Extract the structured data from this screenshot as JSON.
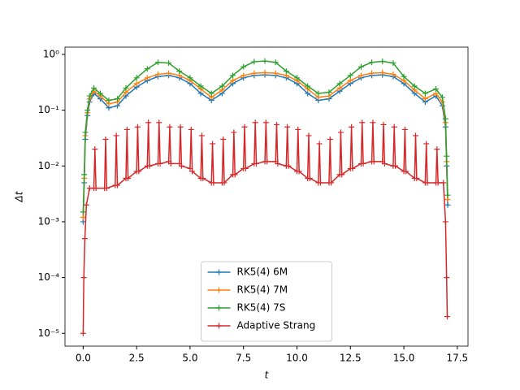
{
  "chart_data": {
    "type": "line",
    "xlabel": "t",
    "ylabel": "Δt",
    "xlim": [
      -0.85,
      18.0
    ],
    "ylim": [
      5.9e-06,
      1.35
    ],
    "log_y": true,
    "legend": "lower center",
    "xticks": [
      {
        "value": 0,
        "label": "0.0"
      },
      2.5,
      {
        "value": 5,
        "label": "5.0"
      },
      7.5,
      {
        "value": 10,
        "label": "10.0"
      },
      12.5,
      {
        "value": 15,
        "label": "15.0"
      },
      17.5
    ],
    "yticks": [
      {
        "value": 1e-05,
        "label": "10⁻⁵"
      },
      {
        "value": 0.0001,
        "label": "10⁻⁴"
      },
      {
        "value": 0.001,
        "label": "10⁻³"
      },
      {
        "value": 0.01,
        "label": "10⁻²"
      },
      {
        "value": 0.1,
        "label": "10⁻¹"
      },
      {
        "value": 1,
        "label": "10⁰"
      }
    ],
    "series": [
      {
        "name": "RK5(4) 6M",
        "color": "#1f77b4",
        "x": [
          0,
          0.05,
          0.1,
          0.2,
          0.3,
          0.5,
          0.8,
          1.2,
          1.6,
          2.0,
          2.5,
          3.0,
          3.5,
          4.0,
          4.5,
          5.0,
          5.5,
          6.0,
          6.5,
          7.0,
          7.5,
          8.0,
          8.5,
          9.0,
          9.5,
          10.0,
          10.5,
          11.0,
          11.5,
          12.0,
          12.5,
          13.0,
          13.5,
          14.0,
          14.5,
          15.0,
          15.5,
          16.0,
          16.5,
          16.8,
          16.95,
          17.0,
          17.05
        ],
        "values": [
          0.001,
          0.005,
          0.03,
          0.08,
          0.14,
          0.2,
          0.16,
          0.11,
          0.12,
          0.18,
          0.26,
          0.34,
          0.4,
          0.42,
          0.38,
          0.3,
          0.2,
          0.15,
          0.2,
          0.3,
          0.38,
          0.42,
          0.43,
          0.42,
          0.38,
          0.3,
          0.2,
          0.15,
          0.16,
          0.22,
          0.3,
          0.38,
          0.42,
          0.43,
          0.4,
          0.3,
          0.2,
          0.14,
          0.18,
          0.12,
          0.05,
          0.01,
          0.002
        ]
      },
      {
        "name": "RK5(4) 7M",
        "color": "#ff7f0e",
        "x": [
          0,
          0.05,
          0.1,
          0.2,
          0.3,
          0.5,
          0.8,
          1.2,
          1.6,
          2.0,
          2.5,
          3.0,
          3.5,
          4.0,
          4.5,
          5.0,
          5.5,
          6.0,
          6.5,
          7.0,
          7.5,
          8.0,
          8.5,
          9.0,
          9.5,
          10.0,
          10.5,
          11.0,
          11.5,
          12.0,
          12.5,
          13.0,
          13.5,
          14.0,
          14.5,
          15.0,
          15.5,
          16.0,
          16.5,
          16.8,
          16.95,
          17.0,
          17.05
        ],
        "values": [
          0.0012,
          0.006,
          0.035,
          0.09,
          0.16,
          0.22,
          0.18,
          0.13,
          0.14,
          0.21,
          0.3,
          0.38,
          0.44,
          0.46,
          0.42,
          0.34,
          0.24,
          0.17,
          0.23,
          0.34,
          0.42,
          0.46,
          0.47,
          0.46,
          0.42,
          0.34,
          0.24,
          0.17,
          0.18,
          0.25,
          0.34,
          0.42,
          0.46,
          0.47,
          0.44,
          0.34,
          0.23,
          0.16,
          0.2,
          0.14,
          0.06,
          0.012,
          0.0025
        ]
      },
      {
        "name": "RK5(4) 7S",
        "color": "#2ca02c",
        "x": [
          0,
          0.05,
          0.1,
          0.2,
          0.3,
          0.5,
          0.8,
          1.2,
          1.6,
          2.0,
          2.5,
          3.0,
          3.5,
          4.0,
          4.5,
          5.0,
          5.5,
          6.0,
          6.5,
          7.0,
          7.5,
          8.0,
          8.5,
          9.0,
          9.5,
          10.0,
          10.5,
          11.0,
          11.5,
          12.0,
          12.5,
          13.0,
          13.5,
          14.0,
          14.5,
          15.0,
          15.5,
          16.0,
          16.5,
          16.8,
          16.95,
          17.0,
          17.05
        ],
        "values": [
          0.0015,
          0.007,
          0.04,
          0.1,
          0.18,
          0.25,
          0.2,
          0.15,
          0.16,
          0.25,
          0.38,
          0.55,
          0.72,
          0.7,
          0.5,
          0.38,
          0.27,
          0.2,
          0.27,
          0.42,
          0.6,
          0.74,
          0.76,
          0.72,
          0.5,
          0.38,
          0.27,
          0.2,
          0.21,
          0.3,
          0.42,
          0.6,
          0.72,
          0.75,
          0.7,
          0.4,
          0.27,
          0.2,
          0.24,
          0.17,
          0.07,
          0.015,
          0.003
        ]
      },
      {
        "name": "Adaptive Strang",
        "color": "#d62728",
        "x": [
          0,
          0.03,
          0.08,
          0.15,
          0.3,
          0.5,
          0.55,
          0.6,
          1.0,
          1.05,
          1.1,
          1.5,
          1.55,
          1.6,
          2.0,
          2.05,
          2.1,
          2.5,
          2.55,
          2.6,
          3.0,
          3.05,
          3.1,
          3.5,
          3.55,
          3.6,
          4.0,
          4.05,
          4.1,
          4.5,
          4.55,
          4.6,
          5.0,
          5.05,
          5.1,
          5.5,
          5.55,
          5.6,
          6.0,
          6.05,
          6.1,
          6.5,
          6.55,
          6.6,
          7.0,
          7.05,
          7.1,
          7.5,
          7.55,
          7.6,
          8.0,
          8.05,
          8.1,
          8.5,
          8.55,
          8.6,
          9.0,
          9.05,
          9.1,
          9.5,
          9.55,
          9.6,
          10.0,
          10.05,
          10.1,
          10.5,
          10.55,
          10.6,
          11.0,
          11.05,
          11.1,
          11.5,
          11.55,
          11.6,
          12.0,
          12.05,
          12.1,
          12.5,
          12.55,
          12.6,
          13.0,
          13.05,
          13.1,
          13.5,
          13.55,
          13.6,
          14.0,
          14.05,
          14.1,
          14.5,
          14.55,
          14.6,
          15.0,
          15.05,
          15.1,
          15.5,
          15.55,
          15.6,
          16.0,
          16.05,
          16.1,
          16.5,
          16.55,
          16.6,
          16.85,
          16.95,
          17.0,
          17.03
        ],
        "values": [
          1e-05,
          0.0001,
          0.0005,
          0.002,
          0.004,
          0.004,
          0.02,
          0.004,
          0.004,
          0.03,
          0.004,
          0.0045,
          0.035,
          0.0045,
          0.006,
          0.045,
          0.006,
          0.008,
          0.05,
          0.008,
          0.01,
          0.06,
          0.01,
          0.011,
          0.06,
          0.011,
          0.012,
          0.05,
          0.011,
          0.011,
          0.05,
          0.01,
          0.009,
          0.045,
          0.008,
          0.006,
          0.035,
          0.006,
          0.005,
          0.025,
          0.005,
          0.005,
          0.03,
          0.005,
          0.007,
          0.04,
          0.007,
          0.009,
          0.05,
          0.009,
          0.011,
          0.06,
          0.011,
          0.012,
          0.06,
          0.012,
          0.012,
          0.055,
          0.011,
          0.01,
          0.05,
          0.01,
          0.008,
          0.045,
          0.008,
          0.006,
          0.035,
          0.006,
          0.005,
          0.025,
          0.005,
          0.005,
          0.03,
          0.005,
          0.007,
          0.04,
          0.007,
          0.009,
          0.05,
          0.009,
          0.011,
          0.06,
          0.011,
          0.012,
          0.06,
          0.012,
          0.012,
          0.055,
          0.011,
          0.01,
          0.05,
          0.01,
          0.008,
          0.045,
          0.008,
          0.006,
          0.035,
          0.006,
          0.005,
          0.025,
          0.005,
          0.005,
          0.02,
          0.005,
          0.005,
          0.001,
          0.0001,
          2e-05
        ]
      }
    ]
  }
}
